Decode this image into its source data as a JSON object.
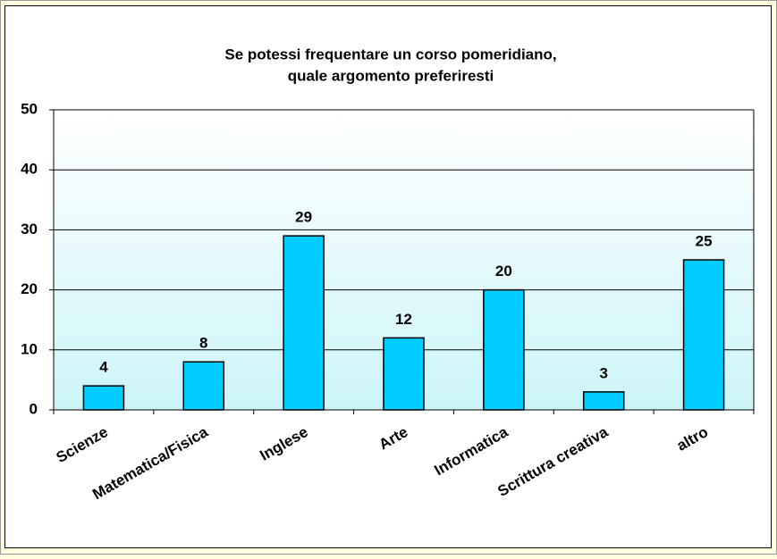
{
  "chart_data": {
    "type": "bar",
    "title": [
      "Se potessi frequentare un corso pomeridiano,",
      "quale argomento preferiresti"
    ],
    "categories": [
      "Scienze",
      "Matematica/Fisica",
      "Inglese",
      "Arte",
      "Informatica",
      "Scrittura creativa",
      "altro"
    ],
    "values": [
      4,
      8,
      29,
      12,
      20,
      3,
      25
    ],
    "color": "#00ccff",
    "ylim": [
      0,
      50
    ],
    "yticks": [
      0,
      10,
      20,
      30,
      40,
      50
    ],
    "grid": true
  }
}
